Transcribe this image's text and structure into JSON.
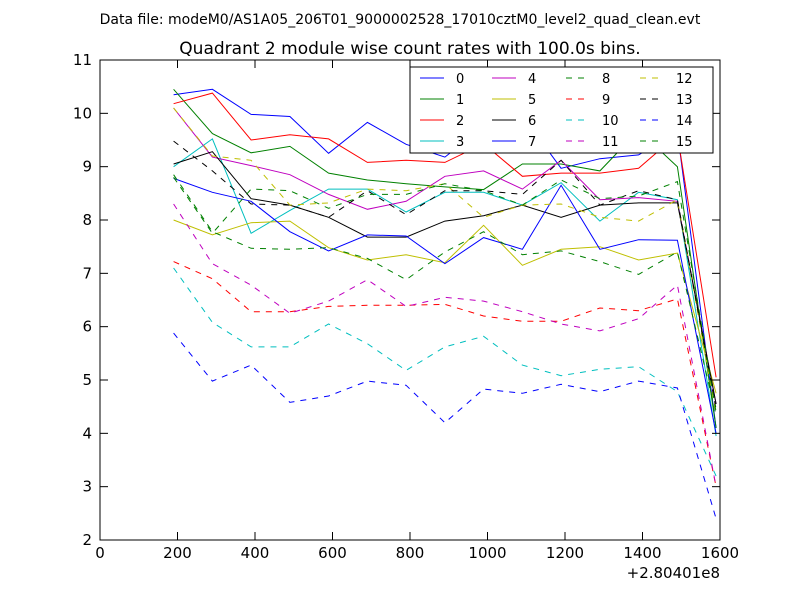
{
  "suptitle": "Data file: modeM0/AS1A05_206T01_9000002528_17010cztM0_level2_quad_clean.evt",
  "chart_data": {
    "type": "line",
    "title": "Quadrant 2 module wise count rates with 100.0s bins.",
    "xlabel": "",
    "ylabel": "",
    "x_offset_label": "+2.80401e8",
    "xlim": [
      0,
      1600
    ],
    "ylim": [
      2,
      11
    ],
    "xticks": [
      0,
      200,
      400,
      600,
      800,
      1000,
      1200,
      1400,
      1600
    ],
    "yticks": [
      2,
      3,
      4,
      5,
      6,
      7,
      8,
      9,
      10,
      11
    ],
    "grid": false,
    "legend_position": "top-right",
    "x": [
      190,
      290,
      390,
      490,
      590,
      690,
      790,
      890,
      990,
      1090,
      1190,
      1290,
      1390,
      1490,
      1590
    ],
    "series": [
      {
        "name": "0",
        "color": "#0000ff",
        "dash": "solid",
        "values": [
          10.35,
          10.45,
          9.98,
          9.94,
          9.25,
          9.83,
          9.42,
          9.18,
          9.75,
          9.96,
          8.97,
          9.15,
          9.22,
          9.65,
          4.1
        ]
      },
      {
        "name": "1",
        "color": "#008000",
        "dash": "solid",
        "values": [
          10.45,
          9.62,
          9.26,
          9.38,
          8.88,
          8.75,
          8.68,
          8.62,
          8.57,
          9.05,
          9.05,
          8.92,
          9.68,
          9.0,
          4.1
        ]
      },
      {
        "name": "2",
        "color": "#ff0000",
        "dash": "solid",
        "values": [
          10.18,
          10.38,
          9.5,
          9.6,
          9.52,
          9.08,
          9.12,
          9.08,
          9.43,
          8.82,
          8.88,
          8.88,
          8.97,
          9.6,
          5.05
        ]
      },
      {
        "name": "3",
        "color": "#00bfbf",
        "dash": "solid",
        "values": [
          9.0,
          9.52,
          7.75,
          8.18,
          8.58,
          8.58,
          8.15,
          8.52,
          8.52,
          8.28,
          8.7,
          7.98,
          8.52,
          8.38,
          3.95
        ]
      },
      {
        "name": "4",
        "color": "#bf00bf",
        "dash": "solid",
        "values": [
          10.1,
          9.18,
          9.02,
          8.85,
          8.48,
          8.2,
          8.35,
          8.82,
          8.92,
          8.58,
          9.12,
          8.38,
          8.42,
          8.35,
          4.55
        ]
      },
      {
        "name": "5",
        "color": "#bfbf00",
        "dash": "solid",
        "values": [
          8.0,
          7.72,
          7.95,
          7.98,
          7.48,
          7.25,
          7.35,
          7.2,
          7.9,
          7.15,
          7.45,
          7.5,
          7.25,
          7.38,
          4.75
        ]
      },
      {
        "name": "6",
        "color": "#000000",
        "dash": "solid",
        "values": [
          9.05,
          9.28,
          8.4,
          8.28,
          8.05,
          7.68,
          7.68,
          7.98,
          8.08,
          8.28,
          8.05,
          8.28,
          8.32,
          8.32,
          4.55
        ]
      },
      {
        "name": "7",
        "color": "#0000ff",
        "dash": "solid",
        "values": [
          8.78,
          8.52,
          8.35,
          7.78,
          7.42,
          7.72,
          7.7,
          7.18,
          7.67,
          7.45,
          8.65,
          7.45,
          7.63,
          7.62,
          4.0
        ]
      },
      {
        "name": "8",
        "color": "#008000",
        "dash": "dashed",
        "values": [
          8.85,
          7.78,
          7.47,
          7.45,
          7.48,
          7.28,
          6.88,
          7.4,
          7.78,
          7.35,
          7.42,
          7.22,
          6.98,
          7.4,
          4.35
        ]
      },
      {
        "name": "9",
        "color": "#ff0000",
        "dash": "dashed",
        "values": [
          7.22,
          6.9,
          6.28,
          6.28,
          6.38,
          6.4,
          6.4,
          6.42,
          6.2,
          6.1,
          6.1,
          6.35,
          6.3,
          6.52,
          3.0
        ]
      },
      {
        "name": "10",
        "color": "#00bfbf",
        "dash": "dashed",
        "values": [
          7.1,
          6.08,
          5.62,
          5.62,
          6.05,
          5.68,
          5.18,
          5.62,
          5.82,
          5.28,
          5.08,
          5.2,
          5.25,
          4.78,
          3.2
        ]
      },
      {
        "name": "11",
        "color": "#bf00bf",
        "dash": "dashed",
        "values": [
          8.3,
          7.18,
          6.78,
          6.25,
          6.48,
          6.88,
          6.38,
          6.55,
          6.48,
          6.28,
          6.05,
          5.92,
          6.15,
          6.78,
          3.0
        ]
      },
      {
        "name": "12",
        "color": "#bfbf00",
        "dash": "dashed",
        "values": [
          10.1,
          9.2,
          9.12,
          8.28,
          8.32,
          8.58,
          8.55,
          8.68,
          8.05,
          8.28,
          8.3,
          8.05,
          7.98,
          8.38,
          4.35
        ]
      },
      {
        "name": "13",
        "color": "#000000",
        "dash": "dashed",
        "values": [
          9.48,
          8.92,
          8.3,
          8.28,
          8.05,
          8.55,
          8.1,
          8.55,
          8.55,
          8.48,
          9.12,
          8.28,
          8.55,
          8.38,
          4.45
        ]
      },
      {
        "name": "14",
        "color": "#0000ff",
        "dash": "dashed",
        "values": [
          5.88,
          4.98,
          5.28,
          4.58,
          4.7,
          4.98,
          4.9,
          4.2,
          4.83,
          4.75,
          4.92,
          4.78,
          4.98,
          4.85,
          2.4
        ]
      },
      {
        "name": "15",
        "color": "#008000",
        "dash": "dashed",
        "values": [
          8.8,
          7.75,
          8.58,
          8.55,
          8.22,
          8.48,
          8.48,
          8.68,
          8.55,
          8.28,
          8.75,
          8.4,
          8.45,
          8.72,
          4.4
        ]
      }
    ]
  }
}
